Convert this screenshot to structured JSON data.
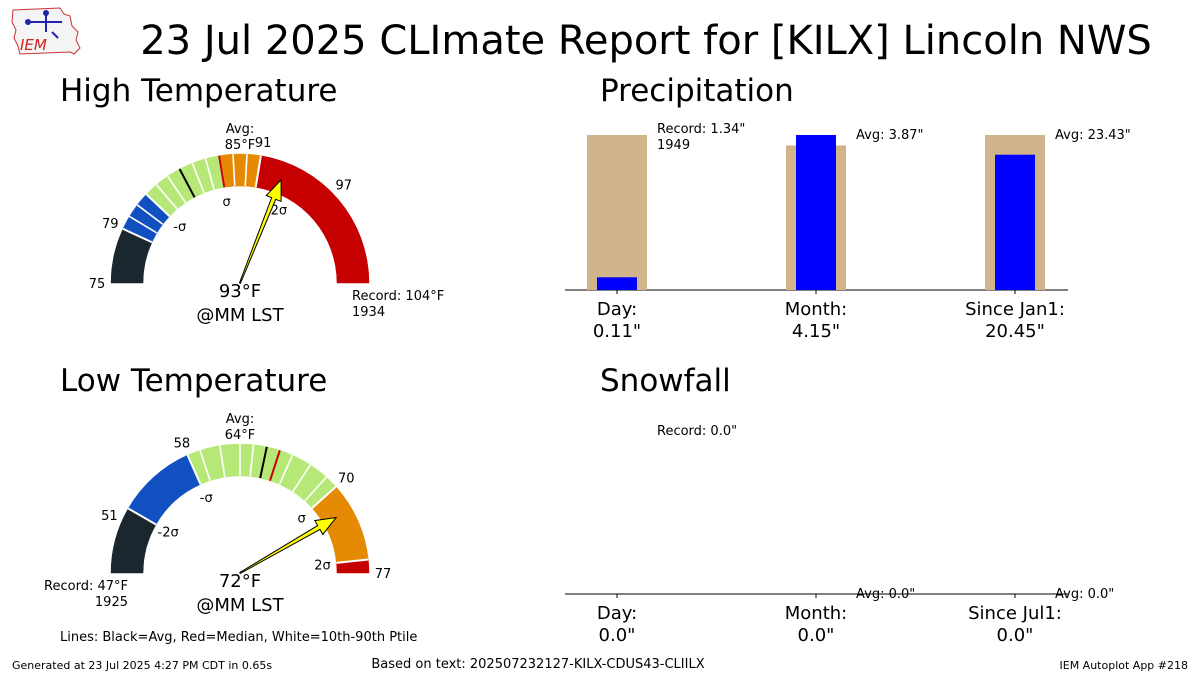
{
  "header": {
    "logo_text": "IEM",
    "title": "23 Jul 2025 CLImate Report for [KILX] Lincoln NWS"
  },
  "colors": {
    "below_2sigma": "#1b272e",
    "minus_2sigma_band": "#1150c0",
    "normal_band": "#b6e878",
    "plus_sigma_band": "#e58a02",
    "above_2sigma": "#c60000",
    "pointer": "#ffff00",
    "precip_avg_bar": "#d2b48c",
    "precip_obs_bar": "#0000ff",
    "avg_line": "#000000",
    "median_line": "#cc0000",
    "ptile_line": "#ffffff"
  },
  "chart_data": [
    {
      "type": "gauge",
      "title": "High Temperature",
      "range": [
        75,
        104
      ],
      "average": 85,
      "average_label": [
        "Avg:",
        "85°F"
      ],
      "median": 88,
      "sigma": 3,
      "ptile_lines": [
        80,
        81,
        82,
        83,
        84,
        86,
        87,
        89,
        90
      ],
      "tick_labels": [
        {
          "value": 75,
          "text": "75"
        },
        {
          "value": 79,
          "text": "79"
        },
        {
          "value": 91,
          "text": "91"
        },
        {
          "value": 97,
          "text": "97"
        }
      ],
      "sigma_labels": [
        {
          "value": 82,
          "text": "-σ"
        },
        {
          "value": 88,
          "text": "σ"
        },
        {
          "value": 94,
          "text": "2σ"
        }
      ],
      "observed": 93,
      "observed_label": [
        "93°F",
        "@MM LST"
      ],
      "record_label": [
        "Record: 104°F",
        "1934"
      ],
      "record_side": "right"
    },
    {
      "type": "gauge",
      "title": "Low Temperature",
      "range": [
        47,
        77
      ],
      "average": 64,
      "average_label": [
        "Avg:",
        "64°F"
      ],
      "median": 65,
      "sigma": 6,
      "ptile_lines": [
        59,
        60.5,
        62,
        63,
        66,
        67.5,
        69
      ],
      "tick_labels": [
        {
          "value": 51,
          "text": "51"
        },
        {
          "value": 58,
          "text": "58"
        },
        {
          "value": 70,
          "text": "70"
        },
        {
          "value": 77,
          "text": "77"
        }
      ],
      "sigma_labels": [
        {
          "value": 52,
          "text": "-2σ"
        },
        {
          "value": 58,
          "text": "-σ"
        },
        {
          "value": 70,
          "text": "σ"
        },
        {
          "value": 76,
          "text": "2σ"
        }
      ],
      "observed": 72,
      "observed_label": [
        "72°F",
        "@MM LST"
      ],
      "record_label": [
        "Record: 47°F",
        "1925"
      ],
      "record_side": "left"
    },
    {
      "type": "bar",
      "title": "Precipitation",
      "categories": [
        [
          "Day:",
          "0.11\""
        ],
        [
          "Month:",
          "4.15\""
        ],
        [
          "Since Jan1:",
          "20.45\""
        ]
      ],
      "observed": [
        0.11,
        4.15,
        20.45
      ],
      "reference": [
        1.34,
        3.87,
        23.43
      ],
      "reference_labels": [
        [
          "Record: 1.34\"",
          "1949"
        ],
        [
          "Avg: 3.87\""
        ],
        [
          "Avg: 23.43\""
        ]
      ]
    },
    {
      "type": "bar",
      "title": "Snowfall",
      "categories": [
        [
          "Day:",
          "0.0\""
        ],
        [
          "Month:",
          "0.0\""
        ],
        [
          "Since Jul1:",
          "0.0\""
        ]
      ],
      "observed": [
        0.0,
        0.0,
        0.0
      ],
      "reference": [
        0.0,
        0.0,
        0.0
      ],
      "reference_labels": [
        [
          "Record: 0.0\""
        ],
        [
          "Avg: 0.0\""
        ],
        [
          "Avg: 0.0\""
        ]
      ]
    }
  ],
  "legend_note": "Lines: Black=Avg, Red=Median, White=10th-90th Ptile",
  "footer": {
    "generated": "Generated at 23 Jul 2025 4:27 PM CDT in 0.65s",
    "based_on": "Based on text: 202507232127-KILX-CDUS43-CLIILX",
    "app": "IEM Autoplot App #218"
  }
}
